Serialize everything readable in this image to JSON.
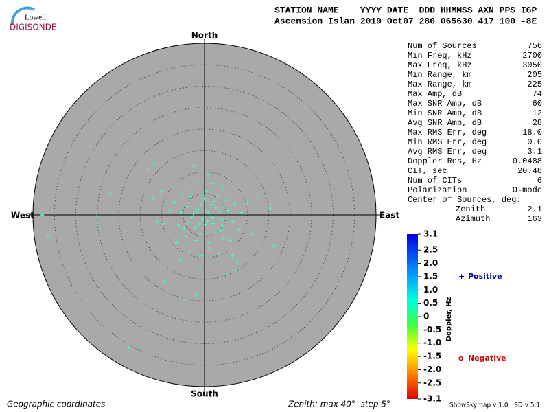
{
  "chart_data": {
    "type": "skymap",
    "logo": {
      "top": "Lowell",
      "bottom": "DIGISONDE"
    },
    "header": [
      "STATION NAME    YYYY DATE  DDD HHMMSS AXN PPS IGP",
      "Ascension Islan 2019 Oct07 280 065630 417 100 -8E"
    ],
    "directions": {
      "north": "North",
      "south": "South",
      "east": "East",
      "west": "West"
    },
    "zenith_max": 40,
    "zenith_step": 5,
    "point_color": "#3dffc0",
    "points": {
      "x": [
        -0.5,
        0.8,
        -1.5,
        2,
        -3,
        1.5,
        -2.2,
        3.5,
        0,
        -4,
        4.2,
        -1,
        2.5,
        -5.5,
        5.5,
        0.5,
        -3.3,
        3,
        -6,
        6.5,
        -2,
        1,
        4.5,
        -4.5,
        7,
        -7,
        2,
        -1.5,
        0.3,
        -0.8,
        1.8,
        -2.6,
        0.2,
        -1.2,
        2.7,
        -3.6,
        3.8,
        -4.8,
        5,
        -5,
        1.2,
        -0.5,
        3.5,
        -3.5,
        6,
        -6.5,
        8,
        -8,
        8.5,
        4.2,
        -4.5,
        0.8,
        -2.5,
        -9.5,
        10,
        6.5,
        -5.5,
        2.5,
        -1,
        7.5,
        -10,
        -11,
        -12,
        11,
        1.5,
        -0.2,
        0.7,
        -1.8,
        2.2,
        -0.3,
        4,
        -4,
        -37.8,
        -36.5,
        -35.2,
        -17.6,
        -13.3,
        -11.7,
        -2.6,
        -22.1,
        -25.1,
        16.3,
        12.3,
        15.4,
        -9.3,
        -4.5,
        -1.8,
        7.2,
        5.1,
        -24.5
      ],
      "y": [
        -1,
        0.5,
        1.2,
        -2,
        -0.5,
        2.5,
        -3,
        0.8,
        3.8,
        2,
        -2.5,
        -4.5,
        -4,
        0.5,
        1,
        5.5,
        4.2,
        4.5,
        -2.5,
        -1.5,
        -6,
        -6.5,
        -5.5,
        -5,
        2.5,
        3,
        7.3,
        7.5,
        -2.2,
        2.3,
        -0.6,
        0.2,
        0.9,
        -2.1,
        1.6,
        -1.8,
        -3.6,
        -3.2,
        3.5,
        4.8,
        -8,
        -9.5,
        -9,
        -8.5,
        -6,
        -6.5,
        -3.5,
        1,
        0.5,
        6.5,
        6.5,
        9.5,
        10,
        -2,
        3,
        -9.5,
        -10.5,
        -11.5,
        -12.5,
        -11,
        5.5,
        -1.5,
        4,
        -4.5,
        -0.2,
        -0.7,
        -1.5,
        0.6,
        3.2,
        4.8,
        -1,
        -3.8,
        0,
        -5.1,
        -3.8,
        -30.9,
        10.9,
        12,
        11.5,
        5,
        -0.3,
        -7.2,
        4.8,
        1.6,
        -15.5,
        -19.7,
        -18.7,
        -12.8,
        -13.9,
        -3.2
      ]
    },
    "stats": [
      {
        "label": "Num of Sources",
        "value": "756"
      },
      {
        "label": "Min Freq, kHz",
        "value": "2700"
      },
      {
        "label": "Max Freq, kHz",
        "value": "3050"
      },
      {
        "label": "Min Range, km",
        "value": "205"
      },
      {
        "label": "Max Range, km",
        "value": "225"
      },
      {
        "label": "Max Amp, dB",
        "value": "74"
      },
      {
        "label": "Max SNR Amp, dB",
        "value": "60"
      },
      {
        "label": "Min SNR Amp, dB",
        "value": "12"
      },
      {
        "label": "Avg SNR Amp, dB",
        "value": "28"
      },
      {
        "label": "Max RMS Err, deg",
        "value": "18.0"
      },
      {
        "label": "Min RMS Err, deg",
        "value": "0.0"
      },
      {
        "label": "Avg RMS Err, deg",
        "value": "3.1"
      },
      {
        "label": "Doppler Res, Hz",
        "value": "0.0488"
      },
      {
        "label": "CIT, sec",
        "value": "20.48"
      },
      {
        "label": "Num of CITs",
        "value": "6"
      },
      {
        "label": "Polarization",
        "value": "O-mode"
      },
      {
        "label": "Center of Sources, deg:"
      },
      {
        "label": "Zenith",
        "value": "2.1",
        "indent": true
      },
      {
        "label": "Azimuth",
        "value": "163",
        "indent": true
      }
    ],
    "colorbar": {
      "label": "Doppler, Hz",
      "lim": [
        -3.1,
        3.1
      ],
      "ticks": [
        3.1,
        2.5,
        {
          "value": 2,
          "label": "2.0"
        },
        1.5,
        {
          "value": 1,
          "label": "1.0"
        },
        0.5,
        0,
        -0.5,
        {
          "value": -1,
          "label": "-1.0"
        },
        -1.5,
        {
          "value": -2,
          "label": "-2.0"
        },
        -2.5,
        -3.1
      ]
    },
    "legend": {
      "positive": {
        "symbol": "+",
        "text": "Positive",
        "color": "#0000c0"
      },
      "negative": {
        "symbol": "o",
        "text": "Negative",
        "color": "#d00000"
      }
    },
    "footer": {
      "left": "Geographic coordinates",
      "middle": "Zenith: max 40°  step 5°",
      "right": "ShowSkymap v 1.0   SD v 5.1"
    }
  }
}
